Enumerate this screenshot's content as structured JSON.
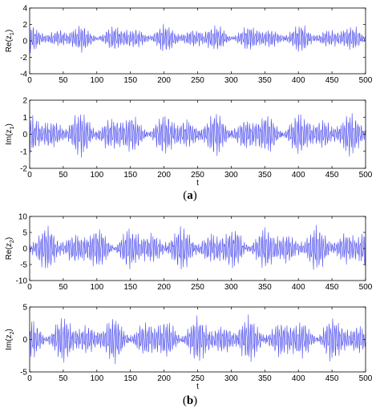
{
  "captions": [
    "(a)",
    "(b)"
  ],
  "caption_letters": [
    "a",
    "b"
  ],
  "colors": {
    "series": "#4a4af0",
    "axis": "#000000",
    "tick_label": "#000000"
  },
  "chart_data": [
    {
      "type": "line",
      "panel": "a",
      "ylabel_base": "Re(z",
      "ylabel_sub": "1",
      "ylabel_end": ")",
      "xlabel": "",
      "xlim": [
        0,
        500
      ],
      "ylim": [
        -4,
        4
      ],
      "xticks": [
        0,
        50,
        100,
        150,
        200,
        250,
        300,
        350,
        400,
        450,
        500
      ],
      "yticks": [
        -4,
        -2,
        0,
        2,
        4
      ],
      "series": [
        {
          "name": "",
          "amplitude": 1.8,
          "offset": 0.3,
          "seed": 11
        }
      ],
      "grid": false
    },
    {
      "type": "line",
      "panel": "a",
      "ylabel_base": "Im(z",
      "ylabel_sub": "1",
      "ylabel_end": ")",
      "xlabel": "t",
      "xlim": [
        0,
        500
      ],
      "ylim": [
        -2,
        2
      ],
      "xticks": [
        0,
        50,
        100,
        150,
        200,
        250,
        300,
        350,
        400,
        450,
        500
      ],
      "yticks": [
        -2,
        -1,
        0,
        1,
        2
      ],
      "series": [
        {
          "name": "",
          "amplitude": 1.4,
          "offset": 0.0,
          "seed": 23
        }
      ],
      "grid": false
    },
    {
      "type": "line",
      "panel": "b",
      "ylabel_base": "Re(z",
      "ylabel_sub": "2",
      "ylabel_end": ")",
      "xlabel": "",
      "xlim": [
        0,
        500
      ],
      "ylim": [
        -10,
        10
      ],
      "xticks": [
        0,
        50,
        100,
        150,
        200,
        250,
        300,
        350,
        400,
        450,
        500
      ],
      "yticks": [
        -10,
        -5,
        0,
        5,
        10
      ],
      "series": [
        {
          "name": "",
          "amplitude": 7.5,
          "offset": 0.0,
          "seed": 37
        }
      ],
      "grid": false
    },
    {
      "type": "line",
      "panel": "b",
      "ylabel_base": "Im(z",
      "ylabel_sub": "2",
      "ylabel_end": ")",
      "xlabel": "t",
      "xlim": [
        0,
        500
      ],
      "ylim": [
        -5,
        5
      ],
      "xticks": [
        0,
        50,
        100,
        150,
        200,
        250,
        300,
        350,
        400,
        450,
        500
      ],
      "yticks": [
        -5,
        0,
        5
      ],
      "series": [
        {
          "name": "",
          "amplitude": 3.8,
          "offset": 0.0,
          "seed": 53
        }
      ],
      "grid": false
    }
  ]
}
